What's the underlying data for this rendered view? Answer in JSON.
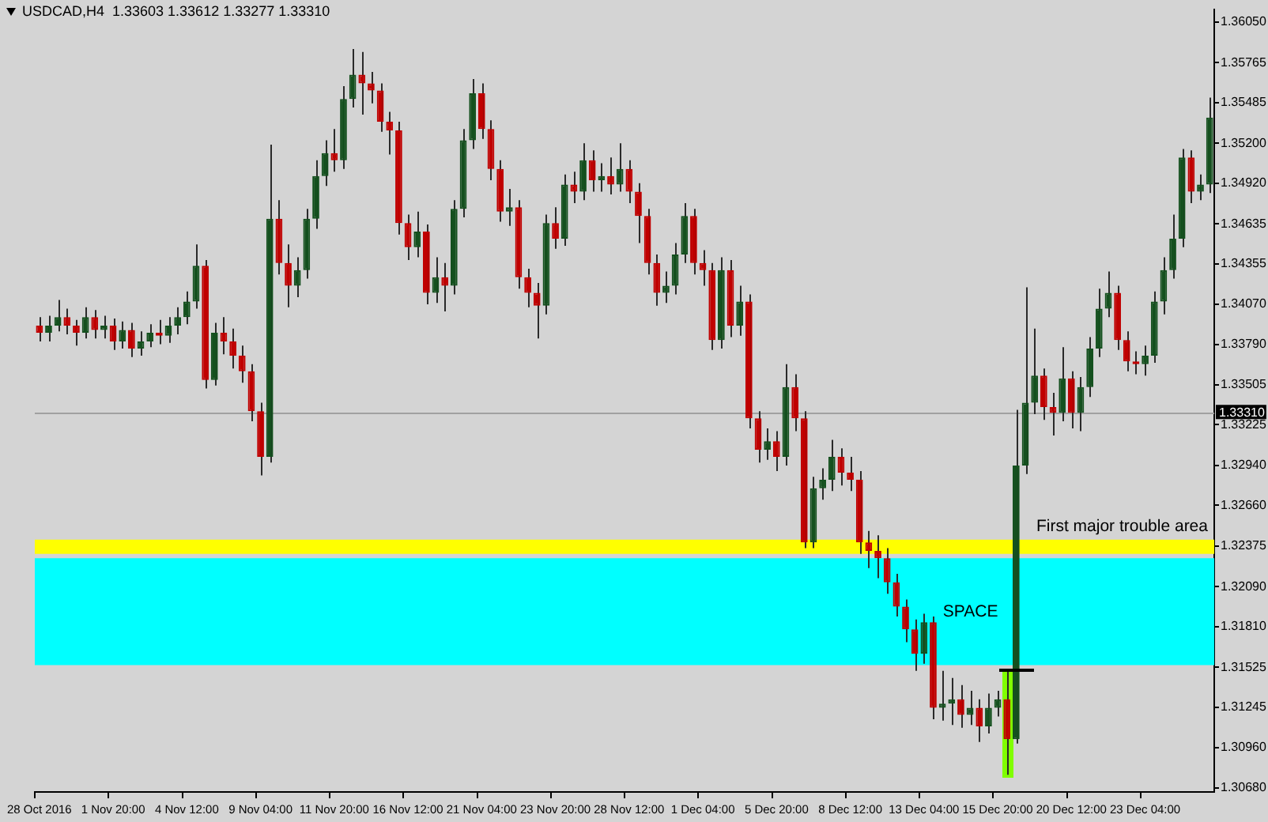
{
  "chart_data": {
    "type": "candlestick",
    "title": "USDCAD,H4  1.33603 1.33612 1.33277 1.33310",
    "categories": [
      "28 Oct 2016",
      null,
      null,
      null,
      null,
      null,
      null,
      null,
      "1 Nov 20:00",
      null,
      null,
      null,
      null,
      null,
      null,
      null,
      "4 Nov 12:00",
      null,
      null,
      null,
      null,
      null,
      null,
      null,
      "9 Nov 04:00",
      null,
      null,
      null,
      null,
      null,
      null,
      null,
      "11 Nov 20:00",
      null,
      null,
      null,
      null,
      null,
      null,
      null,
      "16 Nov 12:00",
      null,
      null,
      null,
      null,
      null,
      null,
      null,
      "21 Nov 04:00",
      null,
      null,
      null,
      null,
      null,
      null,
      null,
      "23 Nov 20:00",
      null,
      null,
      null,
      null,
      null,
      null,
      null,
      "28 Nov 12:00",
      null,
      null,
      null,
      null,
      null,
      null,
      null,
      "1 Dec 04:00",
      null,
      null,
      null,
      null,
      null,
      null,
      null,
      "5 Dec 20:00",
      null,
      null,
      null,
      null,
      null,
      null,
      null,
      "8 Dec 12:00",
      null,
      null,
      null,
      null,
      null,
      null,
      null,
      "13 Dec 04:00",
      null,
      null,
      null,
      null,
      null,
      null,
      null,
      "15 Dec 20:00",
      null,
      null,
      null,
      null,
      null,
      null,
      null,
      "20 Dec 12:00",
      null,
      null,
      null,
      null,
      null,
      null,
      null,
      "23 Dec 04:00",
      null,
      null,
      null,
      null,
      null,
      null,
      null
    ],
    "ohlc": [
      [
        1.3392,
        1.3398,
        1.3381,
        1.3387
      ],
      [
        1.3387,
        1.3399,
        1.3381,
        1.3392
      ],
      [
        1.3392,
        1.341,
        1.3388,
        1.3398
      ],
      [
        1.3398,
        1.3404,
        1.3386,
        1.3392
      ],
      [
        1.3392,
        1.3396,
        1.3378,
        1.3387
      ],
      [
        1.3387,
        1.3405,
        1.3383,
        1.3398
      ],
      [
        1.3398,
        1.3403,
        1.3383,
        1.3389
      ],
      [
        1.3389,
        1.3399,
        1.3383,
        1.3392
      ],
      [
        1.3392,
        1.3397,
        1.3375,
        1.3381
      ],
      [
        1.3381,
        1.3395,
        1.3376,
        1.3389
      ],
      [
        1.3389,
        1.3394,
        1.337,
        1.3376
      ],
      [
        1.3376,
        1.3388,
        1.3371,
        1.3381
      ],
      [
        1.3381,
        1.3393,
        1.3377,
        1.3387
      ],
      [
        1.3387,
        1.3396,
        1.3379,
        1.3385
      ],
      [
        1.3385,
        1.3398,
        1.338,
        1.3392
      ],
      [
        1.3392,
        1.3405,
        1.3386,
        1.3398
      ],
      [
        1.3398,
        1.3416,
        1.3393,
        1.3409
      ],
      [
        1.3409,
        1.3449,
        1.3404,
        1.3434
      ],
      [
        1.3434,
        1.3438,
        1.3348,
        1.3354
      ],
      [
        1.3354,
        1.3394,
        1.335,
        1.3387
      ],
      [
        1.3387,
        1.3398,
        1.3372,
        1.3381
      ],
      [
        1.3381,
        1.339,
        1.3362,
        1.3371
      ],
      [
        1.3371,
        1.3378,
        1.3352,
        1.336
      ],
      [
        1.336,
        1.3365,
        1.3325,
        1.3332
      ],
      [
        1.3332,
        1.3338,
        1.3287,
        1.33
      ],
      [
        1.33,
        1.3519,
        1.3296,
        1.3467
      ],
      [
        1.3467,
        1.348,
        1.3428,
        1.3436
      ],
      [
        1.3436,
        1.3449,
        1.3405,
        1.342
      ],
      [
        1.342,
        1.344,
        1.3412,
        1.3431
      ],
      [
        1.3431,
        1.3474,
        1.3425,
        1.3467
      ],
      [
        1.3467,
        1.3508,
        1.346,
        1.3497
      ],
      [
        1.3497,
        1.3522,
        1.349,
        1.3513
      ],
      [
        1.3513,
        1.353,
        1.35,
        1.3508
      ],
      [
        1.3508,
        1.356,
        1.3502,
        1.3551
      ],
      [
        1.3551,
        1.3586,
        1.3545,
        1.3568
      ],
      [
        1.3568,
        1.3584,
        1.354,
        1.3562
      ],
      [
        1.3562,
        1.357,
        1.3548,
        1.3557
      ],
      [
        1.3557,
        1.3562,
        1.3528,
        1.3535
      ],
      [
        1.3535,
        1.3542,
        1.3512,
        1.3529
      ],
      [
        1.3529,
        1.3535,
        1.3456,
        1.3464
      ],
      [
        1.3464,
        1.347,
        1.3438,
        1.3447
      ],
      [
        1.3447,
        1.3472,
        1.344,
        1.3458
      ],
      [
        1.3458,
        1.3463,
        1.3407,
        1.3415
      ],
      [
        1.3415,
        1.344,
        1.3408,
        1.3426
      ],
      [
        1.3426,
        1.3436,
        1.3402,
        1.342
      ],
      [
        1.342,
        1.348,
        1.3414,
        1.3474
      ],
      [
        1.3474,
        1.353,
        1.3468,
        1.3522
      ],
      [
        1.3522,
        1.3565,
        1.3516,
        1.3555
      ],
      [
        1.3555,
        1.3562,
        1.3523,
        1.353
      ],
      [
        1.353,
        1.3536,
        1.3494,
        1.3502
      ],
      [
        1.3502,
        1.3508,
        1.3465,
        1.3472
      ],
      [
        1.3472,
        1.3488,
        1.3462,
        1.3475
      ],
      [
        1.3475,
        1.348,
        1.3418,
        1.3426
      ],
      [
        1.3426,
        1.3432,
        1.3405,
        1.3415
      ],
      [
        1.3415,
        1.3422,
        1.3383,
        1.3406
      ],
      [
        1.3406,
        1.347,
        1.34,
        1.3464
      ],
      [
        1.3464,
        1.3475,
        1.3446,
        1.3453
      ],
      [
        1.3453,
        1.3498,
        1.3448,
        1.3491
      ],
      [
        1.3491,
        1.35,
        1.3478,
        1.3486
      ],
      [
        1.3486,
        1.352,
        1.348,
        1.3508
      ],
      [
        1.3508,
        1.3515,
        1.3486,
        1.3494
      ],
      [
        1.3494,
        1.3506,
        1.3486,
        1.3497
      ],
      [
        1.3497,
        1.351,
        1.3484,
        1.3491
      ],
      [
        1.3491,
        1.352,
        1.3486,
        1.3502
      ],
      [
        1.3502,
        1.3508,
        1.3478,
        1.3486
      ],
      [
        1.3486,
        1.3492,
        1.345,
        1.3469
      ],
      [
        1.3469,
        1.3474,
        1.3428,
        1.3436
      ],
      [
        1.3436,
        1.3442,
        1.3406,
        1.3415
      ],
      [
        1.3415,
        1.343,
        1.3408,
        1.342
      ],
      [
        1.342,
        1.345,
        1.3414,
        1.3442
      ],
      [
        1.3442,
        1.3478,
        1.3436,
        1.3469
      ],
      [
        1.3469,
        1.3474,
        1.3428,
        1.3436
      ],
      [
        1.3436,
        1.3445,
        1.342,
        1.3431
      ],
      [
        1.3431,
        1.3436,
        1.3375,
        1.3382
      ],
      [
        1.3382,
        1.344,
        1.3376,
        1.3431
      ],
      [
        1.3431,
        1.3438,
        1.3384,
        1.3392
      ],
      [
        1.3392,
        1.342,
        1.3385,
        1.3409
      ],
      [
        1.3409,
        1.3414,
        1.332,
        1.3327
      ],
      [
        1.3327,
        1.3332,
        1.3296,
        1.3305
      ],
      [
        1.3305,
        1.332,
        1.3298,
        1.3311
      ],
      [
        1.3311,
        1.3318,
        1.329,
        1.33
      ],
      [
        1.33,
        1.3365,
        1.3294,
        1.3349
      ],
      [
        1.3349,
        1.3358,
        1.3318,
        1.3327
      ],
      [
        1.3327,
        1.3332,
        1.3236,
        1.324
      ],
      [
        1.324,
        1.3286,
        1.3236,
        1.3278
      ],
      [
        1.3278,
        1.3292,
        1.327,
        1.3284
      ],
      [
        1.3284,
        1.3312,
        1.3276,
        1.33
      ],
      [
        1.33,
        1.3306,
        1.328,
        1.3289
      ],
      [
        1.3289,
        1.33,
        1.3276,
        1.3284
      ],
      [
        1.3284,
        1.329,
        1.3232,
        1.324
      ],
      [
        1.324,
        1.3248,
        1.3222,
        1.3234
      ],
      [
        1.3234,
        1.3245,
        1.3215,
        1.3229
      ],
      [
        1.3229,
        1.3236,
        1.3204,
        1.3212
      ],
      [
        1.3212,
        1.3218,
        1.3188,
        1.3195
      ],
      [
        1.3195,
        1.32,
        1.317,
        1.3179
      ],
      [
        1.3179,
        1.3186,
        1.315,
        1.3162
      ],
      [
        1.3162,
        1.319,
        1.3155,
        1.3184
      ],
      [
        1.3184,
        1.3188,
        1.3116,
        1.3124
      ],
      [
        1.3124,
        1.315,
        1.3115,
        1.3127
      ],
      [
        1.3127,
        1.3145,
        1.3112,
        1.313
      ],
      [
        1.313,
        1.314,
        1.311,
        1.3119
      ],
      [
        1.3119,
        1.3136,
        1.3112,
        1.3124
      ],
      [
        1.3124,
        1.313,
        1.31,
        1.3111
      ],
      [
        1.3111,
        1.3134,
        1.3106,
        1.3124
      ],
      [
        1.3124,
        1.3136,
        1.3118,
        1.313
      ],
      [
        1.313,
        1.315,
        1.3077,
        1.3102
      ],
      [
        1.3102,
        1.3333,
        1.3099,
        1.3294
      ],
      [
        1.3294,
        1.3419,
        1.3288,
        1.3338
      ],
      [
        1.3338,
        1.339,
        1.333,
        1.3357
      ],
      [
        1.3357,
        1.3362,
        1.3326,
        1.3335
      ],
      [
        1.3335,
        1.3345,
        1.3315,
        1.3331
      ],
      [
        1.3331,
        1.3377,
        1.3325,
        1.3355
      ],
      [
        1.3355,
        1.336,
        1.332,
        1.3331
      ],
      [
        1.3331,
        1.3356,
        1.3318,
        1.3349
      ],
      [
        1.3349,
        1.3384,
        1.3342,
        1.3376
      ],
      [
        1.3376,
        1.3418,
        1.337,
        1.3404
      ],
      [
        1.3404,
        1.343,
        1.3398,
        1.3415
      ],
      [
        1.3415,
        1.342,
        1.3375,
        1.3382
      ],
      [
        1.3382,
        1.3388,
        1.336,
        1.3367
      ],
      [
        1.3367,
        1.3374,
        1.3358,
        1.3365
      ],
      [
        1.3365,
        1.3378,
        1.3357,
        1.3371
      ],
      [
        1.3371,
        1.3416,
        1.3366,
        1.3409
      ],
      [
        1.3409,
        1.344,
        1.34,
        1.3431
      ],
      [
        1.3431,
        1.347,
        1.3425,
        1.3453
      ],
      [
        1.3453,
        1.3516,
        1.3447,
        1.351
      ],
      [
        1.351,
        1.3515,
        1.3478,
        1.3486
      ],
      [
        1.3486,
        1.3498,
        1.348,
        1.3491
      ],
      [
        1.3491,
        1.3552,
        1.3485,
        1.3538
      ]
    ],
    "colors": [
      "#c00000",
      "#14501e",
      "#14501e",
      "#c00000",
      "#c00000",
      "#14501e",
      "#c00000",
      "#14501e",
      "#c00000",
      "#14501e",
      "#c00000",
      "#14501e",
      "#14501e",
      "#c00000",
      "#14501e",
      "#14501e",
      "#14501e",
      "#14501e",
      "#c00000",
      "#14501e",
      "#c00000",
      "#c00000",
      "#c00000",
      "#c00000",
      "#c00000",
      "#14501e",
      "#c00000",
      "#c00000",
      "#14501e",
      "#14501e",
      "#14501e",
      "#14501e",
      "#c00000",
      "#14501e",
      "#14501e",
      "#c00000",
      "#c00000",
      "#c00000",
      "#c00000",
      "#c00000",
      "#c00000",
      "#14501e",
      "#c00000",
      "#14501e",
      "#c00000",
      "#14501e",
      "#14501e",
      "#14501e",
      "#c00000",
      "#c00000",
      "#c00000",
      "#14501e",
      "#c00000",
      "#c00000",
      "#c00000",
      "#14501e",
      "#c00000",
      "#14501e",
      "#c00000",
      "#14501e",
      "#c00000",
      "#14501e",
      "#c00000",
      "#14501e",
      "#c00000",
      "#c00000",
      "#c00000",
      "#c00000",
      "#14501e",
      "#14501e",
      "#14501e",
      "#c00000",
      "#c00000",
      "#c00000",
      "#14501e",
      "#c00000",
      "#14501e",
      "#c00000",
      "#c00000",
      "#14501e",
      "#c00000",
      "#14501e",
      "#c00000",
      "#c00000",
      "#14501e",
      "#14501e",
      "#14501e",
      "#c00000",
      "#c00000",
      "#c00000",
      "#c00000",
      "#c00000",
      "#c00000",
      "#c00000",
      "#c00000",
      "#c00000",
      "#14501e",
      "#c00000",
      "#14501e",
      "#14501e",
      "#c00000",
      "#14501e",
      "#c00000",
      "#14501e",
      "#14501e",
      "#c00000",
      "#14501e",
      "#14501e",
      "#14501e",
      "#c00000",
      "#c00000",
      "#14501e",
      "#c00000",
      "#14501e",
      "#14501e",
      "#14501e",
      "#14501e",
      "#c00000",
      "#c00000",
      "#c00000",
      "#14501e",
      "#14501e",
      "#14501e",
      "#14501e",
      "#14501e",
      "#c00000",
      "#14501e",
      "#14501e"
    ],
    "ylim": [
      1.3065,
      1.3614
    ],
    "yticks": [
      {
        "value": 1.3605,
        "label": "1.36050"
      },
      1.35765,
      1.35485,
      {
        "value": 1.352,
        "label": "1.35200"
      },
      {
        "value": 1.3492,
        "label": "1.34920"
      },
      1.34635,
      1.34355,
      {
        "value": 1.3407,
        "label": "1.34070"
      },
      {
        "value": 1.3379,
        "label": "1.33790"
      },
      1.33505,
      1.33225,
      {
        "value": 1.3294,
        "label": "1.32940"
      },
      {
        "value": 1.3266,
        "label": "1.32660"
      },
      1.32375,
      {
        "value": 1.3209,
        "label": "1.32090"
      },
      {
        "value": 1.3181,
        "label": "1.31810"
      },
      1.31525,
      1.31245,
      {
        "value": 1.3096,
        "label": "1.30960"
      },
      {
        "value": 1.3068,
        "label": "1.30680"
      }
    ],
    "ref_lines": [
      {
        "axis": "y",
        "value": 1.3331,
        "label": "1.33310",
        "color": "#a0a0a0"
      }
    ],
    "bands": [
      {
        "axis": "y",
        "from": 1.3232,
        "to": 1.3242,
        "label": "First major trouble area",
        "color": "#ffff00"
      },
      {
        "axis": "y",
        "from": 1.3154,
        "to": 1.3229,
        "label": "SPACE",
        "color": "#00ffff"
      }
    ],
    "grid": false,
    "legend": false
  }
}
